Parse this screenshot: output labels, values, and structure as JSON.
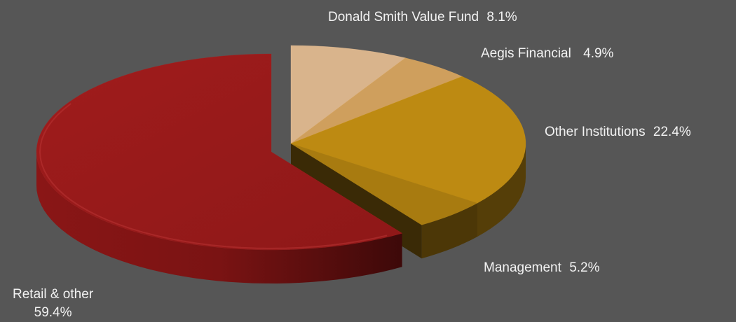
{
  "chart_data": {
    "type": "pie",
    "style": "3d-exploded",
    "title": "",
    "slices": [
      {
        "label": "Donald Smith Value Fund",
        "value": 8.1,
        "value_label": "8.1%",
        "color": "#d9b48c"
      },
      {
        "label": "Aegis Financial",
        "value": 4.9,
        "value_label": "4.9%",
        "color": "#cf9f5d"
      },
      {
        "label": "Other Institutions",
        "value": 22.4,
        "value_label": "22.4%",
        "color": "#bd8a12"
      },
      {
        "label": "Management",
        "value": 5.2,
        "value_label": "5.2%",
        "color": "#a87b10"
      },
      {
        "label": "Retail & other",
        "value": 59.4,
        "value_label": "59.4%",
        "color": "#9e1b1b"
      }
    ],
    "background": "#565656",
    "label_color": "#f2f2f2"
  }
}
